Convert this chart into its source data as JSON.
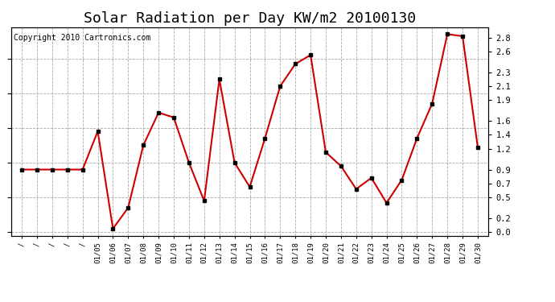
{
  "title": "Solar Radiation per Day KW/m2 20100130",
  "copyright": "Copyright 2010 Cartronics.com",
  "x_labels": [
    "/",
    "/",
    "/",
    "/",
    "/",
    "01/05",
    "01/06",
    "01/07",
    "01/08",
    "01/09",
    "01/10",
    "01/11",
    "01/12",
    "01/13",
    "01/14",
    "01/15",
    "01/16",
    "01/17",
    "01/18",
    "01/19",
    "01/20",
    "01/21",
    "01/22",
    "01/23",
    "01/24",
    "01/25",
    "01/26",
    "01/27",
    "01/28",
    "01/29",
    "01/30"
  ],
  "y_values": [
    0.9,
    0.9,
    0.9,
    0.9,
    0.9,
    1.45,
    0.05,
    0.35,
    1.25,
    1.72,
    1.65,
    1.0,
    0.45,
    2.2,
    1.0,
    0.65,
    1.35,
    2.1,
    2.42,
    2.55,
    1.15,
    0.95,
    0.62,
    0.78,
    0.42,
    0.75,
    1.35,
    1.85,
    2.85,
    2.82,
    1.22
  ],
  "line_color": "#cc0000",
  "marker": "s",
  "marker_color": "#000000",
  "marker_size": 3,
  "grid_color": "#aaaaaa",
  "bg_color": "#ffffff",
  "yticks": [
    0.0,
    0.2,
    0.5,
    0.7,
    0.9,
    1.2,
    1.4,
    1.6,
    1.9,
    2.1,
    2.3,
    2.6,
    2.8
  ],
  "ylim": [
    -0.05,
    2.95
  ],
  "title_fontsize": 13,
  "copyright_fontsize": 7
}
